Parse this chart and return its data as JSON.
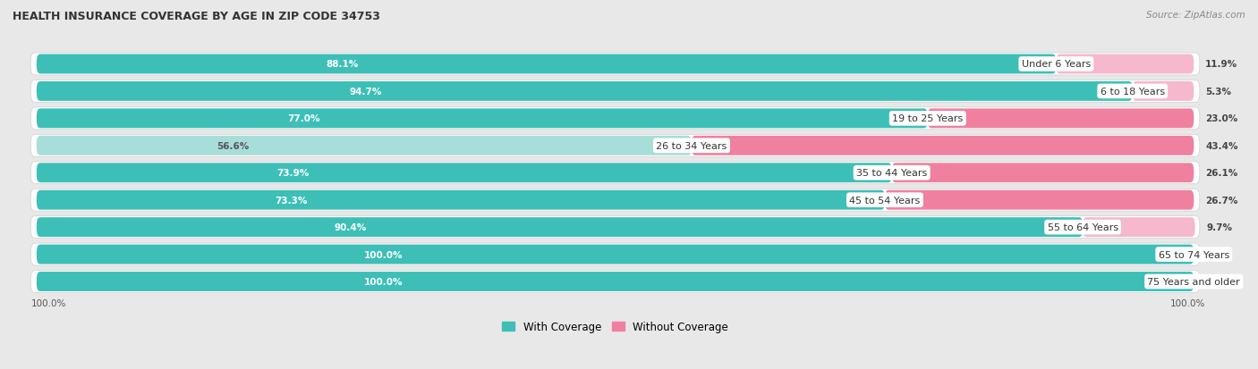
{
  "title": "HEALTH INSURANCE COVERAGE BY AGE IN ZIP CODE 34753",
  "source": "Source: ZipAtlas.com",
  "categories": [
    "Under 6 Years",
    "6 to 18 Years",
    "19 to 25 Years",
    "26 to 34 Years",
    "35 to 44 Years",
    "45 to 54 Years",
    "55 to 64 Years",
    "65 to 74 Years",
    "75 Years and older"
  ],
  "with_coverage": [
    88.1,
    94.7,
    77.0,
    56.6,
    73.9,
    73.3,
    90.4,
    100.0,
    100.0
  ],
  "without_coverage": [
    11.9,
    5.3,
    23.0,
    43.4,
    26.1,
    26.7,
    9.7,
    0.0,
    0.0
  ],
  "color_with": "#3DBFB8",
  "color_with_light": "#A8DED9",
  "color_without": "#F080A0",
  "color_without_light": "#F5B8CC",
  "bg_color": "#E8E8E8",
  "row_bg_color": "#FFFFFF",
  "title_fontsize": 9,
  "label_fontsize": 8,
  "bar_label_fontsize": 7.5,
  "legend_fontsize": 8.5,
  "source_fontsize": 7.5
}
